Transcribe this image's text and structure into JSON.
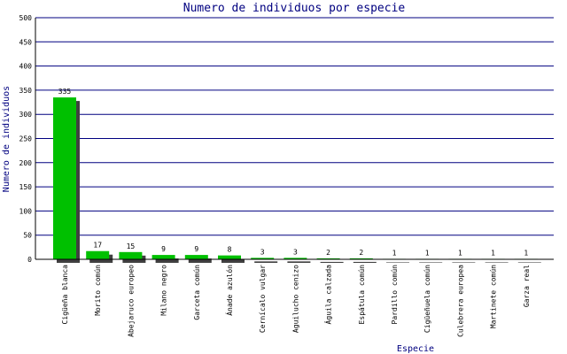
{
  "chart_data": {
    "type": "bar",
    "title": "Numero de individuos por especie",
    "x_label": "Especie",
    "y_label": "Numero de individuos",
    "categories": [
      "Cigüeña blanca",
      "Morito común",
      "Abejaruco europeo",
      "Milano negro",
      "Garceta común",
      "Ánade azulón",
      "Cernícalo vulgar",
      "Aguilucho cenizo",
      "Águila calzada",
      "Espátula común",
      "Pardillo común",
      "Cigüeñuela común",
      "Culebrera europea",
      "Martinete común",
      "Garza real"
    ],
    "values": [
      335,
      17,
      15,
      9,
      9,
      8,
      3,
      3,
      2,
      2,
      1,
      1,
      1,
      1,
      1
    ],
    "color": "#00c000",
    "ylim": [
      0,
      500
    ],
    "yticks": [
      0,
      50,
      100,
      150,
      200,
      250,
      300,
      350,
      400,
      450,
      500
    ],
    "grid": true
  }
}
